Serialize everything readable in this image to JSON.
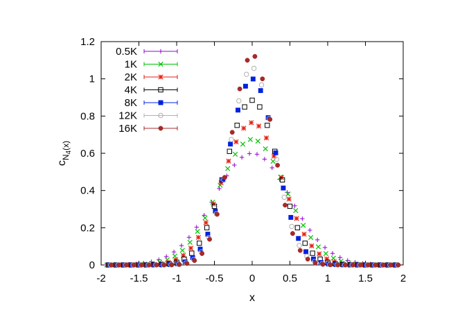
{
  "chart_data": {
    "type": "scatter",
    "title": "",
    "xlabel": "x",
    "ylabel": {
      "main": "c",
      "sub1": "N",
      "sub2": "4",
      "arg": "(x)"
    },
    "xlim": [
      -2,
      2
    ],
    "ylim": [
      0,
      1.2
    ],
    "x_ticks": [
      -2,
      -1.5,
      -1,
      -0.5,
      0,
      0.5,
      1,
      1.5,
      2
    ],
    "x_tick_labels": [
      "-2",
      "-1.5",
      "-1",
      "-0.5",
      "0",
      "0.5",
      "1",
      "1.5",
      "2"
    ],
    "y_ticks": [
      0,
      0.2,
      0.4,
      0.6,
      0.8,
      1,
      1.2
    ],
    "y_tick_labels": [
      "0",
      "0.2",
      "0.4",
      "0.6",
      "0.8",
      "1",
      "1.2"
    ],
    "grid": false,
    "legend_position": "top-left",
    "series": [
      {
        "name": "0.5K",
        "color": "#9400d3",
        "marker": "plus",
        "width": 0.5,
        "peak": 0.6
      },
      {
        "name": "1K",
        "color": "#00c000",
        "marker": "cross",
        "width": 0.445,
        "peak": 0.675
      },
      {
        "name": "2K",
        "color": "#e51e10",
        "marker": "asterisk",
        "width": 0.393,
        "peak": 0.765
      },
      {
        "name": "4K",
        "color": "#000000",
        "marker": "open-square",
        "width": 0.348,
        "peak": 0.885
      },
      {
        "name": "8K",
        "color": "#0020e0",
        "marker": "filled-square",
        "width": 0.31,
        "peak": 1.0
      },
      {
        "name": "12K",
        "color": "#b0b0b0",
        "marker": "open-circle",
        "width": 0.29,
        "peak": 1.06
      },
      {
        "name": "16K",
        "color": "#a52a2a",
        "marker": "filled-circle",
        "width": 0.275,
        "peak": 1.13
      }
    ]
  }
}
